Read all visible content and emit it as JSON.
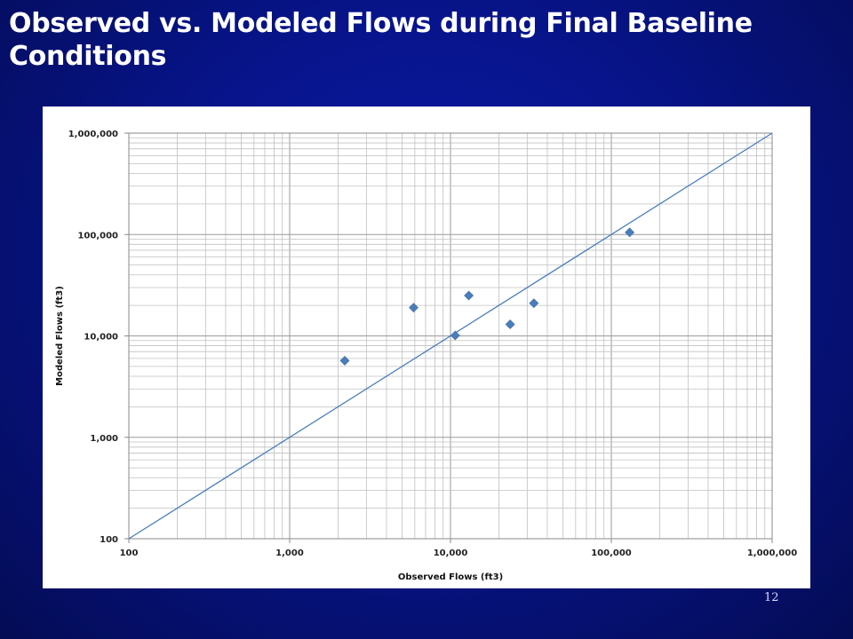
{
  "slide": {
    "title": "Observed vs. Modeled Flows during Final Baseline Conditions",
    "page_number": "12"
  },
  "colors": {
    "background": "#07148a",
    "title_text": "#ffffff",
    "marker": "#4a7ebb",
    "line": "#4a7ebb",
    "grid": "#c0c0c0"
  },
  "chart_data": {
    "type": "scatter",
    "title": "",
    "xlabel": "Observed Flows (ft3)",
    "ylabel": "Modeled Flows (ft3)",
    "xscale": "log",
    "yscale": "log",
    "xlim": [
      100,
      1000000
    ],
    "ylim": [
      100,
      1000000
    ],
    "x_tick_labels": [
      "100",
      "1,000",
      "10,000",
      "100,000",
      "1,000,000"
    ],
    "y_tick_labels": [
      "100",
      "1,000",
      "10,000",
      "100,000",
      "1,000,000"
    ],
    "grid": true,
    "legend": "none",
    "series": [
      {
        "marker": "diamond",
        "points": [
          {
            "x": 2200,
            "y": 5700
          },
          {
            "x": 5900,
            "y": 19000
          },
          {
            "x": 10700,
            "y": 10100
          },
          {
            "x": 13000,
            "y": 25000
          },
          {
            "x": 23500,
            "y": 13000
          },
          {
            "x": 33000,
            "y": 21000
          },
          {
            "x": 130000,
            "y": 105000
          }
        ]
      }
    ],
    "reference_line": {
      "type": "1:1",
      "from": [
        100,
        100
      ],
      "to": [
        1000000,
        1000000
      ]
    }
  }
}
